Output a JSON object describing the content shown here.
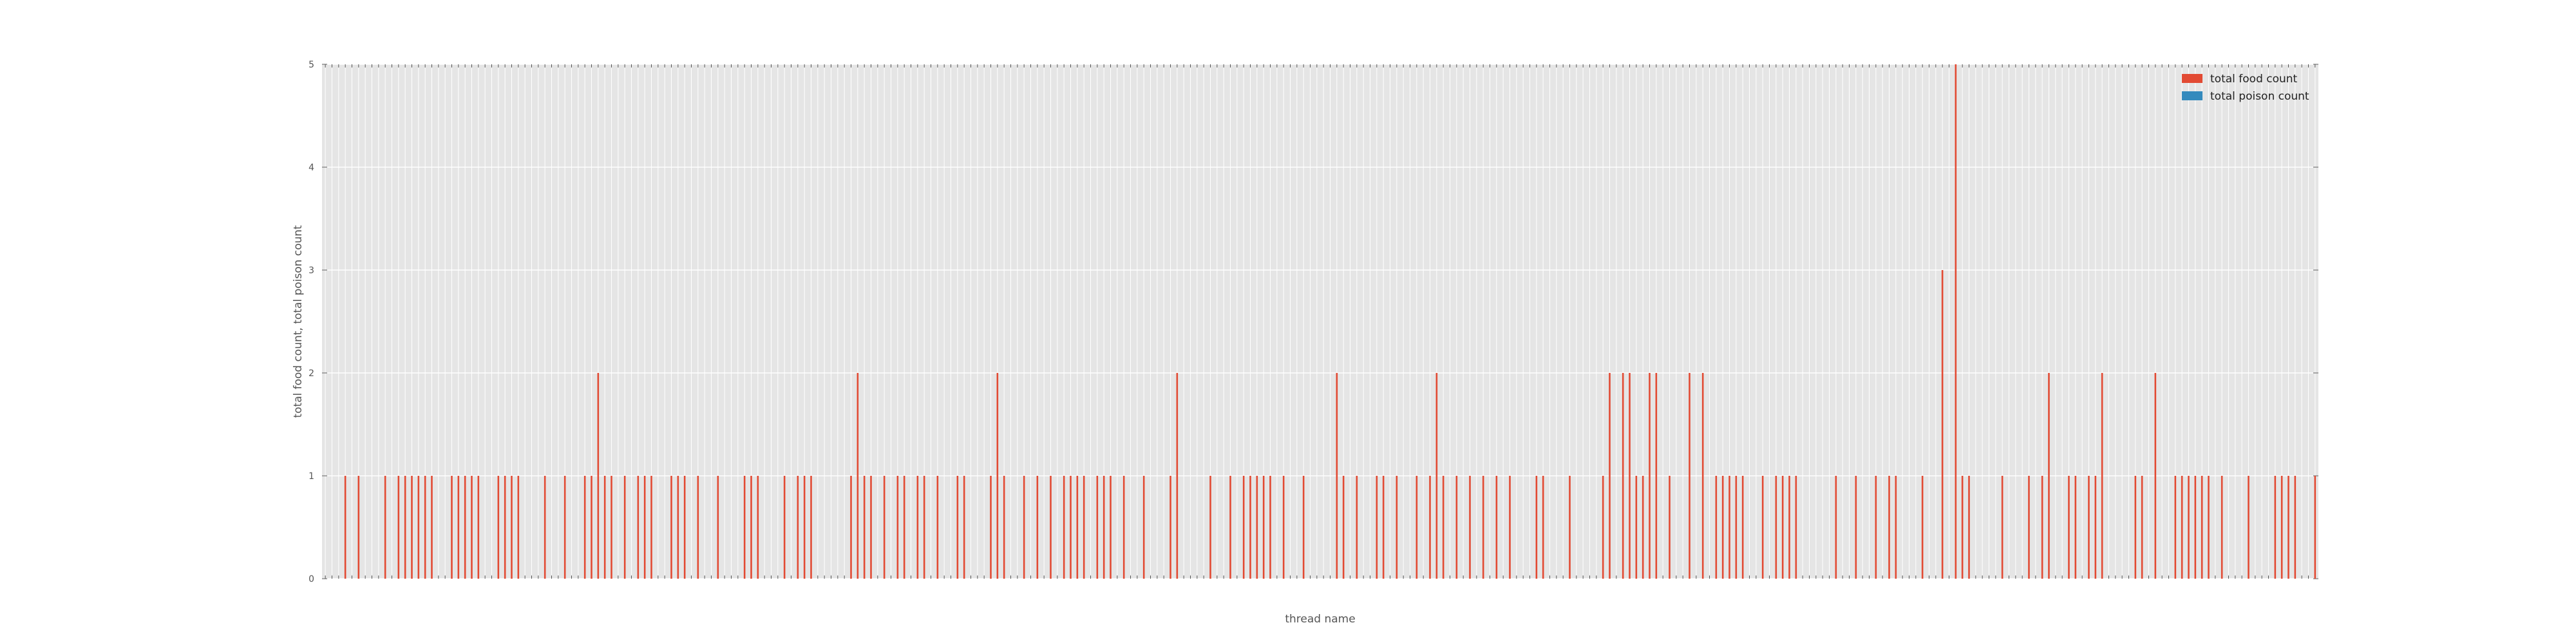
{
  "chart_data": {
    "type": "bar",
    "title": "",
    "xlabel": "thread name",
    "ylabel": "total food count, total poison count",
    "ylim": [
      0,
      5
    ],
    "yticks": [
      0,
      1,
      2,
      3,
      4,
      5
    ],
    "grid": true,
    "legend_position": "top-right",
    "x_tick_labels_visible": false,
    "category_count": 300,
    "series": [
      {
        "name": "total food count",
        "color": "#E24A33",
        "points": [
          [
            3,
            1
          ],
          [
            5,
            1
          ],
          [
            9,
            1
          ],
          [
            11,
            1
          ],
          [
            12,
            1
          ],
          [
            13,
            1
          ],
          [
            14,
            1
          ],
          [
            15,
            1
          ],
          [
            16,
            1
          ],
          [
            19,
            1
          ],
          [
            20,
            1
          ],
          [
            21,
            1
          ],
          [
            22,
            1
          ],
          [
            23,
            1
          ],
          [
            26,
            1
          ],
          [
            27,
            1
          ],
          [
            28,
            1
          ],
          [
            29,
            1
          ],
          [
            33,
            1
          ],
          [
            36,
            1
          ],
          [
            39,
            1
          ],
          [
            40,
            1
          ],
          [
            41,
            2
          ],
          [
            42,
            1
          ],
          [
            43,
            1
          ],
          [
            45,
            1
          ],
          [
            47,
            1
          ],
          [
            48,
            1
          ],
          [
            49,
            1
          ],
          [
            52,
            1
          ],
          [
            53,
            1
          ],
          [
            54,
            1
          ],
          [
            56,
            1
          ],
          [
            59,
            1
          ],
          [
            63,
            1
          ],
          [
            64,
            1
          ],
          [
            65,
            1
          ],
          [
            69,
            1
          ],
          [
            71,
            1
          ],
          [
            72,
            1
          ],
          [
            73,
            1
          ],
          [
            79,
            1
          ],
          [
            80,
            2
          ],
          [
            81,
            1
          ],
          [
            82,
            1
          ],
          [
            84,
            1
          ],
          [
            86,
            1
          ],
          [
            87,
            1
          ],
          [
            89,
            1
          ],
          [
            90,
            1
          ],
          [
            92,
            1
          ],
          [
            95,
            1
          ],
          [
            96,
            1
          ],
          [
            100,
            1
          ],
          [
            101,
            2
          ],
          [
            102,
            1
          ],
          [
            105,
            1
          ],
          [
            107,
            1
          ],
          [
            109,
            1
          ],
          [
            111,
            1
          ],
          [
            112,
            1
          ],
          [
            113,
            1
          ],
          [
            114,
            1
          ],
          [
            116,
            1
          ],
          [
            117,
            1
          ],
          [
            118,
            1
          ],
          [
            120,
            1
          ],
          [
            123,
            1
          ],
          [
            127,
            1
          ],
          [
            128,
            2
          ],
          [
            133,
            1
          ],
          [
            136,
            1
          ],
          [
            138,
            1
          ],
          [
            139,
            1
          ],
          [
            140,
            1
          ],
          [
            141,
            1
          ],
          [
            142,
            1
          ],
          [
            144,
            1
          ],
          [
            147,
            1
          ],
          [
            152,
            2
          ],
          [
            153,
            1
          ],
          [
            155,
            1
          ],
          [
            158,
            1
          ],
          [
            159,
            1
          ],
          [
            161,
            1
          ],
          [
            164,
            1
          ],
          [
            166,
            1
          ],
          [
            167,
            2
          ],
          [
            168,
            1
          ],
          [
            170,
            1
          ],
          [
            172,
            1
          ],
          [
            174,
            1
          ],
          [
            176,
            1
          ],
          [
            178,
            1
          ],
          [
            182,
            1
          ],
          [
            183,
            1
          ],
          [
            187,
            1
          ],
          [
            192,
            1
          ],
          [
            193,
            2
          ],
          [
            195,
            2
          ],
          [
            196,
            2
          ],
          [
            197,
            1
          ],
          [
            198,
            1
          ],
          [
            199,
            2
          ],
          [
            200,
            2
          ],
          [
            202,
            1
          ],
          [
            205,
            2
          ],
          [
            207,
            2
          ],
          [
            209,
            1
          ],
          [
            210,
            1
          ],
          [
            211,
            1
          ],
          [
            212,
            1
          ],
          [
            213,
            1
          ],
          [
            216,
            1
          ],
          [
            218,
            1
          ],
          [
            219,
            1
          ],
          [
            220,
            1
          ],
          [
            221,
            1
          ],
          [
            227,
            1
          ],
          [
            230,
            1
          ],
          [
            233,
            1
          ],
          [
            235,
            1
          ],
          [
            236,
            1
          ],
          [
            240,
            1
          ],
          [
            243,
            3
          ],
          [
            245,
            5
          ],
          [
            246,
            1
          ],
          [
            247,
            1
          ],
          [
            252,
            1
          ],
          [
            256,
            1
          ],
          [
            258,
            1
          ],
          [
            259,
            2
          ],
          [
            262,
            1
          ],
          [
            263,
            1
          ],
          [
            265,
            1
          ],
          [
            266,
            1
          ],
          [
            267,
            2
          ],
          [
            272,
            1
          ],
          [
            273,
            1
          ],
          [
            275,
            2
          ],
          [
            278,
            1
          ],
          [
            279,
            1
          ],
          [
            280,
            1
          ],
          [
            281,
            1
          ],
          [
            282,
            1
          ],
          [
            283,
            1
          ],
          [
            285,
            1
          ],
          [
            289,
            1
          ],
          [
            293,
            1
          ],
          [
            294,
            1
          ],
          [
            295,
            1
          ],
          [
            296,
            1
          ],
          [
            299,
            1
          ]
        ]
      },
      {
        "name": "total poison count",
        "color": "#348ABD",
        "points": []
      }
    ]
  }
}
